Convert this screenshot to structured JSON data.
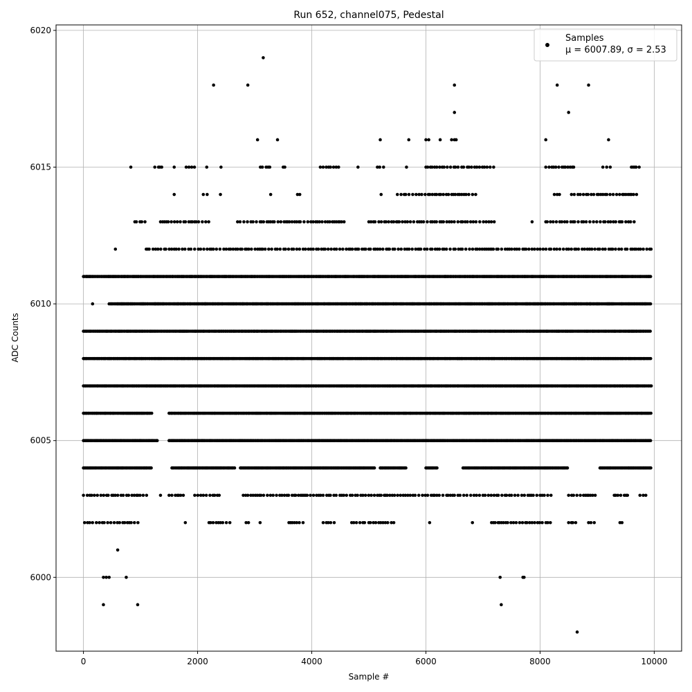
{
  "chart_data": {
    "type": "scatter",
    "title": "Run 652, channel075, Pedestal",
    "xlabel": "Sample #",
    "ylabel": "ADC Counts",
    "xlim": [
      -480,
      10480
    ],
    "ylim": [
      5997.3,
      6020.2
    ],
    "xticks": [
      0,
      2000,
      4000,
      6000,
      8000,
      10000
    ],
    "yticks": [
      6000,
      6005,
      6010,
      6015,
      6020
    ],
    "grid": true,
    "legend": {
      "placement": "top-right",
      "series_label": "Samples",
      "stats_label": "μ = 6007.89, σ = 2.53"
    },
    "marker_color": "#000000",
    "series": [
      {
        "name": "Samples",
        "band_levels": [
          {
            "y": 6002,
            "ranges": [
              [
                20,
                1000
              ],
              [
                1770,
                1800
              ],
              [
                2200,
                2600
              ],
              [
                2850,
                2900
              ],
              [
                3080,
                3110
              ],
              [
                3600,
                3850
              ],
              [
                4200,
                4450
              ],
              [
                4700,
                4950
              ],
              [
                5000,
                5450
              ],
              [
                6050,
                6080
              ],
              [
                6800,
                6830
              ],
              [
                7150,
                8200
              ],
              [
                8500,
                8650
              ],
              [
                8850,
                8950
              ],
              [
                9400,
                9450
              ]
            ]
          },
          {
            "y": 6003,
            "ranges": [
              [
                0,
                1150
              ],
              [
                1350,
                1400
              ],
              [
                1500,
                1800
              ],
              [
                1950,
                2400
              ],
              [
                2800,
                7000
              ],
              [
                7000,
                8200
              ],
              [
                8500,
                9000
              ],
              [
                9300,
                9550
              ],
              [
                9750,
                9900
              ]
            ]
          },
          {
            "y": 6004,
            "ranges": [
              [
                0,
                1200
              ],
              [
                1550,
                2650
              ],
              [
                2750,
                5100
              ],
              [
                5200,
                5650
              ],
              [
                6000,
                6200
              ],
              [
                6650,
                8500
              ],
              [
                9050,
                9950
              ]
            ]
          },
          {
            "y": 6005,
            "ranges": [
              [
                0,
                1300
              ],
              [
                1500,
                9950
              ]
            ]
          },
          {
            "y": 6006,
            "ranges": [
              [
                0,
                1200
              ],
              [
                1500,
                9950
              ]
            ]
          },
          {
            "y": 6007,
            "ranges": [
              [
                0,
                9950
              ]
            ]
          },
          {
            "y": 6008,
            "ranges": [
              [
                0,
                9950
              ]
            ]
          },
          {
            "y": 6009,
            "ranges": [
              [
                0,
                9950
              ]
            ]
          },
          {
            "y": 6010,
            "ranges": [
              [
                150,
                170
              ],
              [
                450,
                9950
              ]
            ]
          },
          {
            "y": 6011,
            "ranges": [
              [
                0,
                9950
              ]
            ]
          },
          {
            "y": 6012,
            "ranges": [
              [
                550,
                570
              ],
              [
                1100,
                9950
              ]
            ]
          },
          {
            "y": 6013,
            "ranges": [
              [
                900,
                1100
              ],
              [
                1350,
                2200
              ],
              [
                2700,
                4600
              ],
              [
                5000,
                7200
              ],
              [
                7850,
                7870
              ],
              [
                8100,
                9650
              ]
            ]
          },
          {
            "y": 6014,
            "ranges": [
              [
                1580,
                1600
              ],
              [
                2100,
                2200
              ],
              [
                2400,
                2450
              ],
              [
                3270,
                3290
              ],
              [
                3750,
                3800
              ],
              [
                5200,
                5230
              ],
              [
                5500,
                6900
              ],
              [
                8250,
                8350
              ],
              [
                8550,
                9700
              ]
            ]
          },
          {
            "y": 6015,
            "ranges": [
              [
                820,
                840
              ],
              [
                1250,
                1400
              ],
              [
                1580,
                1600
              ],
              [
                1800,
                1950
              ],
              [
                2150,
                2170
              ],
              [
                2400,
                2420
              ],
              [
                3100,
                3300
              ],
              [
                3500,
                3550
              ],
              [
                4150,
                4500
              ],
              [
                4800,
                4820
              ],
              [
                5150,
                5300
              ],
              [
                5650,
                5670
              ],
              [
                6000,
                7200
              ],
              [
                8100,
                8600
              ],
              [
                9100,
                9250
              ],
              [
                9600,
                9750
              ]
            ]
          }
        ],
        "outliers": [
          {
            "x": 350,
            "y": 6000
          },
          {
            "x": 400,
            "y": 6000
          },
          {
            "x": 450,
            "y": 6000
          },
          {
            "x": 750,
            "y": 6000
          },
          {
            "x": 7300,
            "y": 6000
          },
          {
            "x": 7700,
            "y": 6000
          },
          {
            "x": 7720,
            "y": 6000
          },
          {
            "x": 350,
            "y": 5999
          },
          {
            "x": 950,
            "y": 5999
          },
          {
            "x": 7320,
            "y": 5999
          },
          {
            "x": 8650,
            "y": 5998
          },
          {
            "x": 600,
            "y": 6001
          },
          {
            "x": 3050,
            "y": 6016
          },
          {
            "x": 3400,
            "y": 6016
          },
          {
            "x": 5200,
            "y": 6016
          },
          {
            "x": 5700,
            "y": 6016
          },
          {
            "x": 6000,
            "y": 6016
          },
          {
            "x": 6050,
            "y": 6016
          },
          {
            "x": 6250,
            "y": 6016
          },
          {
            "x": 6450,
            "y": 6016
          },
          {
            "x": 6500,
            "y": 6016
          },
          {
            "x": 6530,
            "y": 6016
          },
          {
            "x": 8100,
            "y": 6016
          },
          {
            "x": 9200,
            "y": 6016
          },
          {
            "x": 6500,
            "y": 6017
          },
          {
            "x": 8500,
            "y": 6017
          },
          {
            "x": 2280,
            "y": 6018
          },
          {
            "x": 2880,
            "y": 6018
          },
          {
            "x": 6500,
            "y": 6018
          },
          {
            "x": 8300,
            "y": 6018
          },
          {
            "x": 8850,
            "y": 6018
          },
          {
            "x": 3150,
            "y": 6019
          }
        ]
      }
    ]
  }
}
